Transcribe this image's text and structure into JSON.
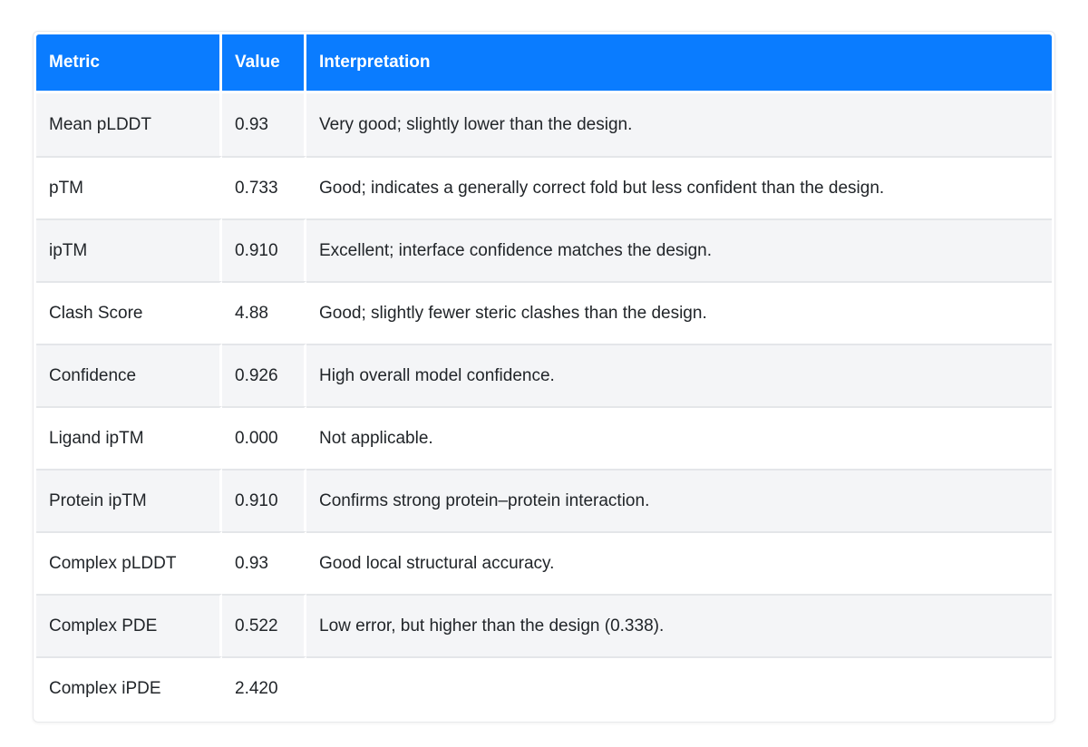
{
  "theme": {
    "header_bg": "#0a7cff",
    "header_text": "#ffffff",
    "stripe_bg": "#f4f5f7",
    "row_bg": "#ffffff",
    "body_text": "#212529",
    "row_border": "#e4e6e9",
    "outer_border": "#e9eaec"
  },
  "table": {
    "columns": [
      {
        "label": "Metric"
      },
      {
        "label": "Value"
      },
      {
        "label": "Interpretation"
      }
    ],
    "rows": [
      {
        "metric": "Mean pLDDT",
        "value": "0.93",
        "interpretation": "Very good; slightly lower than the design."
      },
      {
        "metric": "pTM",
        "value": "0.733",
        "interpretation": "Good; indicates a generally correct fold but less confident than the design."
      },
      {
        "metric": "ipTM",
        "value": "0.910",
        "interpretation": "Excellent; interface confidence matches the design."
      },
      {
        "metric": "Clash Score",
        "value": "4.88",
        "interpretation": "Good; slightly fewer steric clashes than the design."
      },
      {
        "metric": "Confidence",
        "value": "0.926",
        "interpretation": "High overall model confidence."
      },
      {
        "metric": "Ligand ipTM",
        "value": "0.000",
        "interpretation": "Not applicable."
      },
      {
        "metric": "Protein ipTM",
        "value": "0.910",
        "interpretation": "Confirms strong protein–protein interaction."
      },
      {
        "metric": "Complex pLDDT",
        "value": "0.93",
        "interpretation": "Good local structural accuracy."
      },
      {
        "metric": "Complex PDE",
        "value": "0.522",
        "interpretation": "Low error, but higher than the design (0.338)."
      },
      {
        "metric": "Complex iPDE",
        "value": "2.420",
        "interpretation": ""
      }
    ]
  },
  "chart_data": {
    "type": "table",
    "title": "",
    "categories": [
      "Mean pLDDT",
      "pTM",
      "ipTM",
      "Clash Score",
      "Confidence",
      "Ligand ipTM",
      "Protein ipTM",
      "Complex pLDDT",
      "Complex PDE",
      "Complex iPDE"
    ],
    "values": [
      0.93,
      0.733,
      0.91,
      4.88,
      0.926,
      0.0,
      0.91,
      0.93,
      0.522,
      2.42
    ]
  }
}
